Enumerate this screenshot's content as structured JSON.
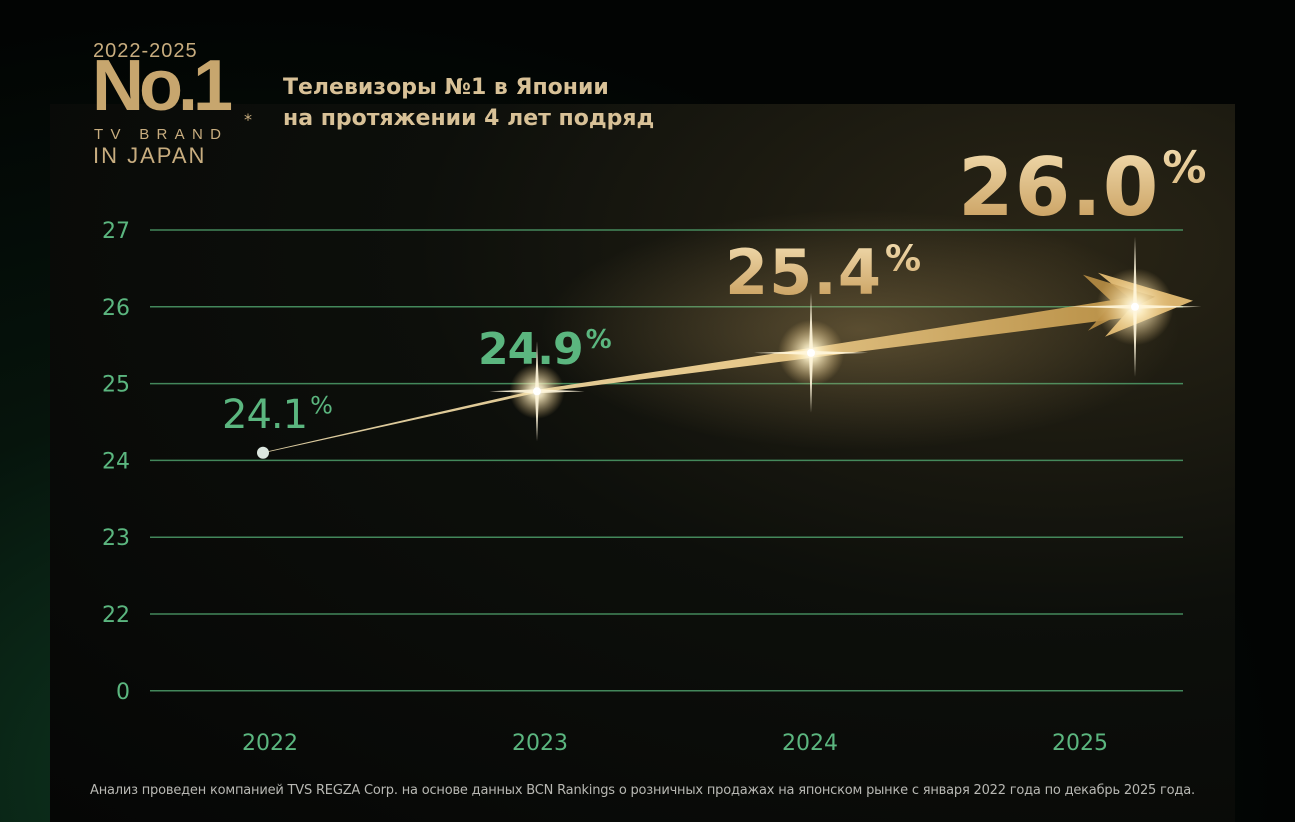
{
  "logo": {
    "years": "2022-2025",
    "number": "No.1",
    "tv_brand": "TV BRAND",
    "asterisk": "*",
    "in_japan": "IN JAPAN"
  },
  "headline": {
    "line1": "Телевизоры №1 в Японии",
    "line2": "на протяжении 4 лет подряд"
  },
  "footnote": "Анализ проведен компанией TVS REGZA Corp. на основе данных BCN Rankings о розничных продажах на японском рынке с января 2022 года по декабрь 2025 года.",
  "colors": {
    "accent_green": "#5bb67f",
    "accent_gold": "#e2c38b",
    "gridline": "#4d9d6a"
  },
  "chart_data": {
    "type": "line",
    "categories": [
      "2022",
      "2023",
      "2024",
      "2025"
    ],
    "series": [
      {
        "values": [
          24.1,
          24.9,
          25.4,
          26.0
        ]
      }
    ],
    "value_labels": [
      {
        "number": "24.1",
        "unit": "%"
      },
      {
        "number": "24.9",
        "unit": "%"
      },
      {
        "number": "25.4",
        "unit": "%"
      },
      {
        "number": "26.0",
        "unit": "%"
      }
    ],
    "y_ticks": [
      0,
      22,
      23,
      24,
      25,
      26,
      27
    ],
    "axis_break": "0 to 22",
    "ylim": [
      22,
      27
    ],
    "grid": true,
    "title": "",
    "xlabel": "",
    "ylabel": ""
  }
}
